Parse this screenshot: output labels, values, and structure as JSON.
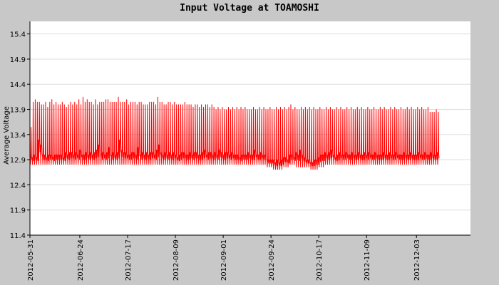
{
  "chart_data": {
    "type": "line",
    "title": "Input Voltage at TOAMOSHI",
    "ylabel": "Average Voltage",
    "xlabel": "",
    "ylim": [
      11.4,
      15.65
    ],
    "yticks": [
      11.4,
      11.9,
      12.4,
      12.9,
      13.4,
      13.9,
      14.4,
      14.9,
      15.4
    ],
    "ytick_labels": [
      "11.4",
      "11.9",
      "12.4",
      "12.9",
      "13.4",
      "13.9",
      "14.4",
      "14.9",
      "15.4"
    ],
    "xlim": [
      "2012-05-31",
      "2012-12-29"
    ],
    "xticks": [
      "2012-05-31",
      "2012-06-24",
      "2012-07-17",
      "2012-08-09",
      "2012-09-01",
      "2012-09-24",
      "2012-10-17",
      "2012-11-09",
      "2012-12-03"
    ],
    "grid": true,
    "series": [
      {
        "color": "#ff0000",
        "daily_max": [
          13.55,
          14.05,
          14.1,
          14.05,
          14.05,
          14.0,
          14.0,
          14.05,
          13.95,
          14.05,
          14.1,
          14.0,
          14.05,
          14.0,
          14.0,
          14.05,
          14.0,
          13.95,
          14.0,
          14.05,
          14.0,
          14.05,
          14.0,
          14.1,
          14.0,
          14.15,
          14.05,
          14.1,
          14.05,
          14.05,
          14.0,
          14.1,
          14.0,
          14.05,
          14.05,
          14.05,
          14.1,
          14.1,
          14.05,
          14.05,
          14.05,
          14.05,
          14.15,
          14.05,
          14.05,
          14.05,
          14.1,
          14.0,
          14.05,
          14.05,
          14.05,
          14.0,
          14.05,
          14.05,
          14.0,
          14.0,
          14.0,
          14.05,
          14.05,
          14.05,
          14.0,
          14.15,
          14.05,
          14.05,
          14.0,
          14.0,
          14.05,
          14.05,
          14.0,
          14.05,
          14.0,
          14.0,
          14.0,
          14.0,
          14.05,
          14.0,
          14.0,
          14.0,
          13.95,
          14.0,
          14.0,
          13.95,
          14.0,
          13.95,
          14.0,
          14.0,
          13.95,
          14.0,
          13.95,
          13.9,
          13.95,
          13.9,
          13.95,
          13.9,
          13.9,
          13.95,
          13.9,
          13.95,
          13.9,
          13.95,
          13.9,
          13.95,
          13.9,
          13.95,
          13.9,
          13.9,
          13.9,
          13.95,
          13.9,
          13.9,
          13.95,
          13.9,
          13.95,
          13.9,
          13.9,
          13.95,
          13.9,
          13.9,
          13.95,
          13.9,
          13.95,
          13.9,
          13.95,
          13.9,
          13.95,
          14.0,
          13.9,
          13.95,
          13.9,
          13.9,
          13.95,
          13.9,
          13.95,
          13.9,
          13.95,
          13.9,
          13.95,
          13.9,
          13.9,
          13.95,
          13.9,
          13.9,
          13.95,
          13.9,
          13.95,
          13.9,
          13.9,
          13.95,
          13.9,
          13.95,
          13.9,
          13.9,
          13.95,
          13.9,
          13.95,
          13.9,
          13.9,
          13.95,
          13.9,
          13.95,
          13.9,
          13.9,
          13.95,
          13.9,
          13.9,
          13.95,
          13.9,
          13.9,
          13.95,
          13.9,
          13.95,
          13.9,
          13.9,
          13.95,
          13.9,
          13.95,
          13.9,
          13.9,
          13.95,
          13.9,
          13.9,
          13.95,
          13.9,
          13.95,
          13.9,
          13.9,
          13.95,
          13.9,
          13.95,
          13.9,
          13.9,
          13.95,
          13.85,
          13.85,
          13.85,
          13.9,
          13.85
        ],
        "daily_min": [
          12.8,
          12.8,
          12.8,
          12.8,
          12.8,
          12.8,
          12.8,
          12.8,
          12.8,
          12.8,
          12.8,
          12.8,
          12.8,
          12.8,
          12.8,
          12.8,
          12.8,
          12.8,
          12.8,
          12.8,
          12.8,
          12.8,
          12.8,
          12.8,
          12.8,
          12.8,
          12.8,
          12.8,
          12.8,
          12.8,
          12.8,
          12.8,
          12.8,
          12.8,
          12.8,
          12.8,
          12.8,
          12.8,
          12.8,
          12.8,
          12.8,
          12.8,
          12.8,
          12.8,
          12.8,
          12.8,
          12.8,
          12.8,
          12.8,
          12.8,
          12.8,
          12.8,
          12.8,
          12.8,
          12.8,
          12.8,
          12.8,
          12.8,
          12.8,
          12.8,
          12.8,
          12.8,
          12.8,
          12.8,
          12.8,
          12.8,
          12.8,
          12.8,
          12.8,
          12.8,
          12.8,
          12.8,
          12.8,
          12.8,
          12.8,
          12.8,
          12.8,
          12.8,
          12.8,
          12.8,
          12.8,
          12.8,
          12.8,
          12.8,
          12.8,
          12.8,
          12.8,
          12.8,
          12.8,
          12.8,
          12.8,
          12.8,
          12.8,
          12.8,
          12.8,
          12.8,
          12.8,
          12.8,
          12.8,
          12.8,
          12.8,
          12.8,
          12.8,
          12.8,
          12.8,
          12.8,
          12.8,
          12.8,
          12.8,
          12.8,
          12.8,
          12.8,
          12.8,
          12.8,
          12.75,
          12.75,
          12.75,
          12.7,
          12.7,
          12.7,
          12.7,
          12.7,
          12.75,
          12.75,
          12.75,
          12.8,
          12.8,
          12.8,
          12.75,
          12.75,
          12.75,
          12.75,
          12.75,
          12.75,
          12.75,
          12.7,
          12.7,
          12.7,
          12.7,
          12.75,
          12.75,
          12.75,
          12.8,
          12.8,
          12.8,
          12.8,
          12.8,
          12.8,
          12.8,
          12.8,
          12.8,
          12.8,
          12.8,
          12.8,
          12.8,
          12.8,
          12.8,
          12.8,
          12.8,
          12.8,
          12.8,
          12.8,
          12.8,
          12.8,
          12.8,
          12.8,
          12.8,
          12.8,
          12.8,
          12.8,
          12.8,
          12.8,
          12.8,
          12.8,
          12.8,
          12.8,
          12.8,
          12.8,
          12.8,
          12.8,
          12.8,
          12.8,
          12.8,
          12.8,
          12.8,
          12.8,
          12.8,
          12.8,
          12.8,
          12.8,
          12.8,
          12.8,
          12.8,
          12.8,
          12.8,
          12.8,
          12.8,
          12.8,
          12.8,
          12.8,
          12.8,
          12.75,
          12.75,
          12.7
        ],
        "daily_typical": [
          13.0,
          12.95,
          13.0,
          12.95,
          13.3,
          13.2,
          13.0,
          13.0,
          12.95,
          13.0,
          13.0,
          12.95,
          13.0,
          13.0,
          13.0,
          13.0,
          12.95,
          13.05,
          13.0,
          13.05,
          13.05,
          13.0,
          13.05,
          13.0,
          13.1,
          13.0,
          13.0,
          13.05,
          13.0,
          13.05,
          13.0,
          13.05,
          13.1,
          13.2,
          13.0,
          13.05,
          13.0,
          13.05,
          13.15,
          13.0,
          13.05,
          13.0,
          13.05,
          13.3,
          13.1,
          13.05,
          13.05,
          13.0,
          13.0,
          13.05,
          13.05,
          13.0,
          13.15,
          13.0,
          13.05,
          13.0,
          13.05,
          13.0,
          13.05,
          13.05,
          13.0,
          13.1,
          13.2,
          13.05,
          13.0,
          13.05,
          13.0,
          13.05,
          13.0,
          13.05,
          13.0,
          12.95,
          13.0,
          13.05,
          13.05,
          13.0,
          13.0,
          13.05,
          13.0,
          13.05,
          13.05,
          13.0,
          13.0,
          13.05,
          13.1,
          13.0,
          13.05,
          13.05,
          13.0,
          13.05,
          13.0,
          13.1,
          13.05,
          13.0,
          13.05,
          13.05,
          13.0,
          13.05,
          13.0,
          13.0,
          13.0,
          12.95,
          13.0,
          13.0,
          13.0,
          13.05,
          13.0,
          13.0,
          13.1,
          13.0,
          13.0,
          13.05,
          13.0,
          13.0,
          12.9,
          12.9,
          12.9,
          12.9,
          12.85,
          12.9,
          12.85,
          12.9,
          12.95,
          12.95,
          12.9,
          13.0,
          13.0,
          12.95,
          13.05,
          13.0,
          13.1,
          13.0,
          12.95,
          12.9,
          12.9,
          12.85,
          12.85,
          12.9,
          12.9,
          12.95,
          13.0,
          13.0,
          13.05,
          13.0,
          13.05,
          13.1,
          13.0,
          12.95,
          13.0,
          13.05,
          13.0,
          13.0,
          13.05,
          13.0,
          13.0,
          13.05,
          13.0,
          13.0,
          13.05,
          13.0,
          13.0,
          13.05,
          13.0,
          13.05,
          13.0,
          13.0,
          13.05,
          13.0,
          13.0,
          13.0,
          13.05,
          13.0,
          13.0,
          13.05,
          13.0,
          13.0,
          13.05,
          13.0,
          13.0,
          13.0,
          13.05,
          13.0,
          13.0,
          13.05,
          13.0,
          13.0,
          13.0,
          13.05,
          13.0,
          13.0,
          13.05,
          13.0,
          13.0,
          13.05,
          13.0,
          13.0,
          13.05,
          13.0,
          13.05,
          13.2,
          13.0,
          13.0,
          12.95
        ]
      }
    ]
  }
}
